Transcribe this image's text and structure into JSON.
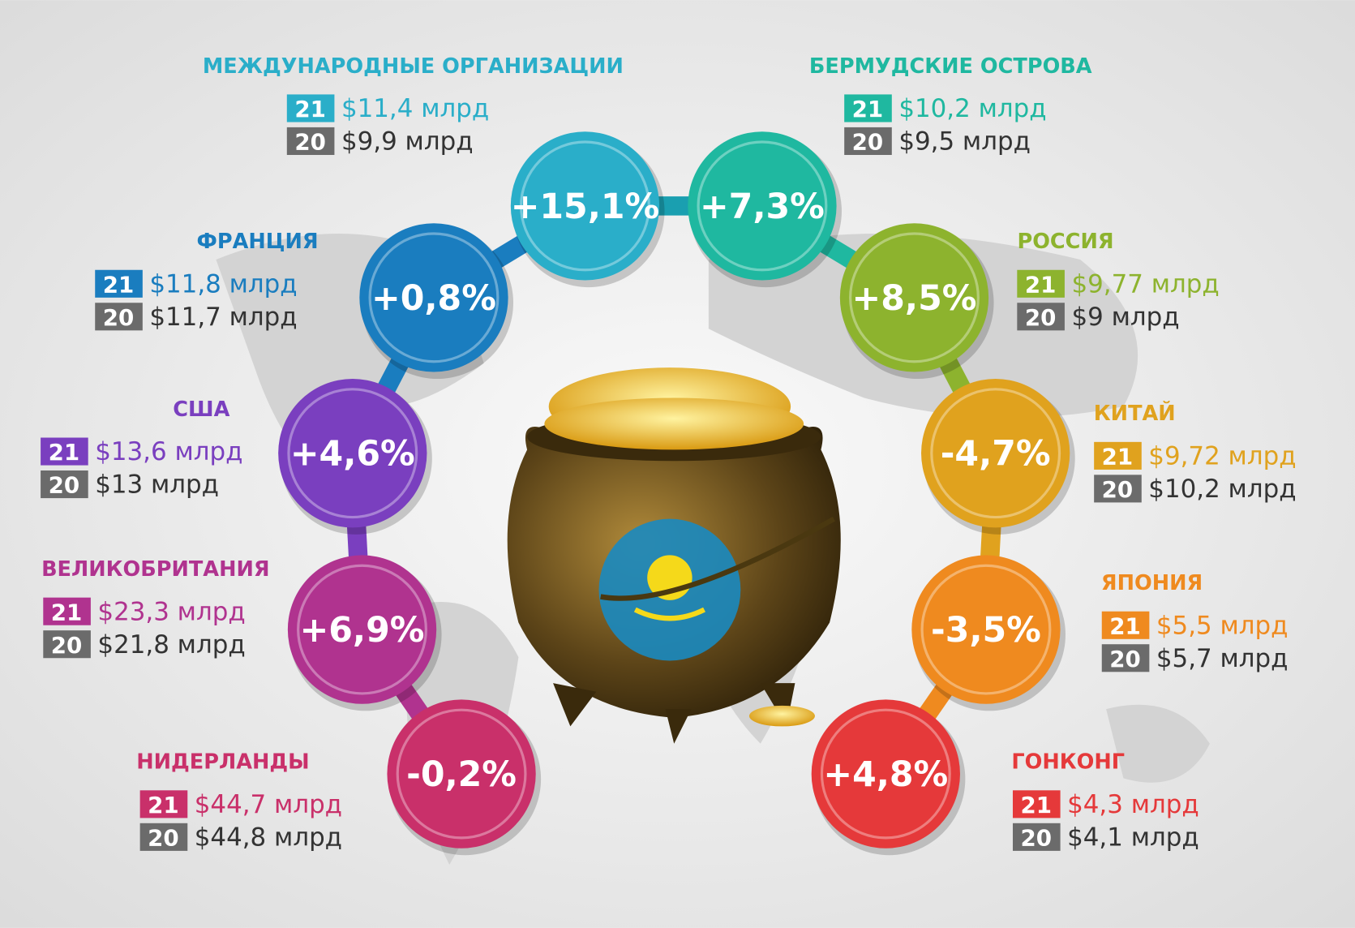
{
  "items": [
    {
      "title": "МЕЖДУНАРОДНЫЕ ОРГАНИЗАЦИИ",
      "change": "+15,1%",
      "year_a": "21",
      "value_a": "$11,4 млрд",
      "year_b": "20",
      "value_b": "$9,9 млрд"
    },
    {
      "title": "БЕРМУДСКИЕ ОСТРОВА",
      "change": "+7,3%",
      "year_a": "21",
      "value_a": "$10,2 млрд",
      "year_b": "20",
      "value_b": "$9,5 млрд"
    },
    {
      "title": "ФРАНЦИЯ",
      "change": "+0,8%",
      "year_a": "21",
      "value_a": "$11,8 млрд",
      "year_b": "20",
      "value_b": "$11,7 млрд"
    },
    {
      "title": "РОССИЯ",
      "change": "+8,5%",
      "year_a": "21",
      "value_a": "$9,77 млрд",
      "year_b": "20",
      "value_b": "$9 млрд"
    },
    {
      "title": "США",
      "change": "+4,6%",
      "year_a": "21",
      "value_a": "$13,6 млрд",
      "year_b": "20",
      "value_b": "$13 млрд"
    },
    {
      "title": "КИТАЙ",
      "change": "-4,7%",
      "year_a": "21",
      "value_a": "$9,72 млрд",
      "year_b": "20",
      "value_b": "$10,2 млрд"
    },
    {
      "title": "ВЕЛИКОБРИТАНИЯ",
      "change": "+6,9%",
      "year_a": "21",
      "value_a": "$23,3 млрд",
      "year_b": "20",
      "value_b": "$21,8 млрд"
    },
    {
      "title": "ЯПОНИЯ",
      "change": "-3,5%",
      "year_a": "21",
      "value_a": "$5,5 млрд",
      "year_b": "20",
      "value_b": "$5,7 млрд"
    },
    {
      "title": "НИДЕРЛАНДЫ",
      "change": "-0,2%",
      "year_a": "21",
      "value_a": "$44,7 млрд",
      "year_b": "20",
      "value_b": "$44,8 млрд"
    },
    {
      "title": "ГОНКОНГ",
      "change": "+4,8%",
      "year_a": "21",
      "value_a": "$4,3 млрд",
      "year_b": "20",
      "value_b": "$4,1 млрд"
    }
  ]
}
